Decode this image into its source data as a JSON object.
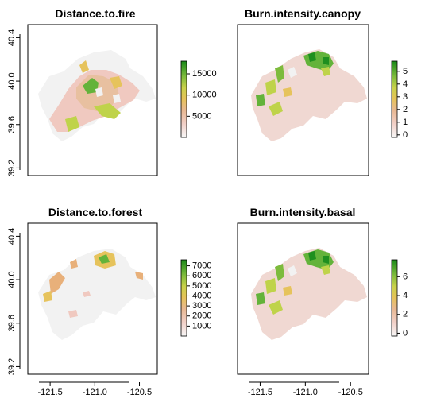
{
  "chart_data": [
    {
      "type": "heatmap",
      "title": "Distance.to.fire",
      "xticks": [],
      "yticks": [
        "39.2",
        "39.6",
        "40.0",
        "40.4"
      ],
      "legend_ticks": [
        "5000",
        "10000",
        "15000"
      ],
      "legend_values": [
        5000,
        10000,
        15000
      ],
      "legend_range": [
        0,
        18000
      ],
      "palette": [
        "#f2f2f2",
        "#f0c9c0",
        "#e8b07a",
        "#e6c35c",
        "#bfd34a",
        "#63b33a",
        "#1f8f1f"
      ]
    },
    {
      "type": "heatmap",
      "title": "Burn.intensity.canopy",
      "xticks": [],
      "yticks": [],
      "legend_ticks": [
        "0",
        "1",
        "2",
        "3",
        "4",
        "5"
      ],
      "legend_values": [
        0,
        1,
        2,
        3,
        4,
        5
      ],
      "legend_range": [
        -0.2,
        5.8
      ],
      "palette": [
        "#f2f2f2",
        "#f0c9c0",
        "#e8b07a",
        "#e6c35c",
        "#bfd34a",
        "#63b33a",
        "#1f8f1f"
      ]
    },
    {
      "type": "heatmap",
      "title": "Distance.to.forest",
      "xticks": [
        "-121.5",
        "-121.0",
        "-120.5"
      ],
      "yticks": [
        "39.2",
        "39.6",
        "40.0",
        "40.4"
      ],
      "legend_ticks": [
        "1000",
        "2000",
        "3000",
        "4000",
        "5000",
        "6000",
        "7000"
      ],
      "legend_values": [
        1000,
        2000,
        3000,
        4000,
        5000,
        6000,
        7000
      ],
      "legend_range": [
        0,
        7600
      ],
      "palette": [
        "#f2f2f2",
        "#f0c9c0",
        "#e8b07a",
        "#e6c35c",
        "#bfd34a",
        "#63b33a",
        "#1f8f1f"
      ]
    },
    {
      "type": "heatmap",
      "title": "Burn.intensity.basal",
      "xticks": [
        "-121.5",
        "-121.0",
        "-120.5"
      ],
      "yticks": [],
      "legend_ticks": [
        "0",
        "2",
        "4",
        "6"
      ],
      "legend_values": [
        0,
        2,
        4,
        6
      ],
      "legend_range": [
        -0.3,
        7.8
      ],
      "palette": [
        "#f2f2f2",
        "#f0c9c0",
        "#e8b07a",
        "#e6c35c",
        "#bfd34a",
        "#63b33a",
        "#1f8f1f"
      ]
    }
  ],
  "x_tick_values": [
    -121.5,
    -121.0,
    -120.5
  ],
  "y_tick_values": [
    39.2,
    39.6,
    40.0,
    40.4
  ],
  "x_range": [
    -121.75,
    -120.3
  ],
  "y_range": [
    39.13,
    40.52
  ]
}
